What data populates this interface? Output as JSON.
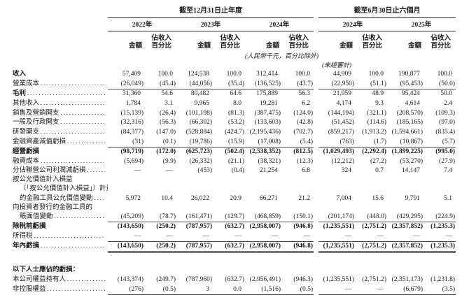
{
  "table": {
    "groups": [
      {
        "title": "截至12月31日止年度",
        "years": [
          "2022年",
          "2023年",
          "2024年"
        ]
      },
      {
        "title": "截至6月30日止六個月",
        "years": [
          "2024年",
          "2025年"
        ]
      }
    ],
    "subheader": {
      "amount": "金額",
      "pct": [
        "佔收入",
        "百分比"
      ]
    },
    "unit_note": "(人民幣千元，百分比除外)",
    "unaudited_note": "(未經審計)",
    "rows": [
      {
        "label": "收入",
        "label_bold": true,
        "values_bold": false,
        "dots": false,
        "indent": 0,
        "rule": null,
        "values": [
          "57,409",
          "100.0",
          "124,538",
          "100.0",
          "312,414",
          "100.0",
          "44,909",
          "100.0",
          "190,877",
          "100.0"
        ]
      },
      {
        "label": "營業成本",
        "label_bold": false,
        "values_bold": false,
        "dots": true,
        "indent": 0,
        "rule": "single",
        "values": [
          "(26,049)",
          "(45.4)",
          "(44,056)",
          "(35.4)",
          "(136,525)",
          "(43.7)",
          "(22,950)",
          "(51.1)",
          "(95,453)",
          "(50.0)"
        ]
      },
      {
        "label": "毛利",
        "label_bold": true,
        "values_bold": false,
        "dots": true,
        "indent": 0,
        "rule": null,
        "values": [
          "31,360",
          "54.6",
          "80,482",
          "64.6",
          "175,889",
          "56.3",
          "21,959",
          "48.9",
          "95,424",
          "50.0"
        ]
      },
      {
        "label": "其他收入",
        "label_bold": false,
        "values_bold": false,
        "dots": true,
        "indent": 0,
        "rule": null,
        "values": [
          "1,784",
          "3.1",
          "9,965",
          "8.0",
          "19,281",
          "6.2",
          "4,174",
          "9.3",
          "4,614",
          "2.4"
        ]
      },
      {
        "label": "銷售及營銷開支",
        "label_bold": false,
        "values_bold": false,
        "dots": true,
        "indent": 0,
        "rule": null,
        "values": [
          "(15,139)",
          "(26.4)",
          "(101,198)",
          "(81.3)",
          "(387,475)",
          "(124.0)",
          "(144,194)",
          "(321.1)",
          "(208,570)",
          "(109.3)"
        ]
      },
      {
        "label": "一般及行政開支",
        "label_bold": false,
        "values_bold": false,
        "dots": true,
        "indent": 0,
        "rule": null,
        "values": [
          "(32,316)",
          "(56.3)",
          "(66,302)",
          "(53.2)",
          "(133,603)",
          "(42.8)",
          "(51,452)",
          "(114.6)",
          "(185,165)",
          "(97.0)"
        ]
      },
      {
        "label": "研發開支",
        "label_bold": false,
        "values_bold": false,
        "dots": true,
        "indent": 0,
        "rule": null,
        "values": [
          "(84,377)",
          "(147.0)",
          "(528,884)",
          "(424.7)",
          "(2,195,436)",
          "(702.7)",
          "(859,217)",
          "(1,913.2)",
          "(1,594,661)",
          "(835.4)"
        ]
      },
      {
        "label": "金融資產減值虧損",
        "label_bold": false,
        "values_bold": false,
        "dots": true,
        "indent": 0,
        "rule": "single",
        "values": [
          "(31)",
          "(0.1)",
          "(19,786)",
          "(15.9)",
          "(17,008)",
          "(5.4)",
          "(763)",
          "(1.7)",
          "(10,867)",
          "(5.7)"
        ]
      },
      {
        "label": "經營虧損",
        "label_bold": true,
        "values_bold": true,
        "dots": false,
        "indent": 0,
        "rule": null,
        "values": [
          "(98,719)",
          "(172.0)",
          "(625,723)",
          "(502.4)",
          "(2,538,352)",
          "(812.5)",
          "(1,029,493)",
          "(2,292.4)",
          "(1,899,225)",
          "(995.0)"
        ]
      },
      {
        "label": "融資成本",
        "label_bold": false,
        "values_bold": false,
        "dots": true,
        "indent": 0,
        "rule": null,
        "values": [
          "(5,694)",
          "(9.9)",
          "(26,332)",
          "(21.1)",
          "(38,321)",
          "(12.3)",
          "(12,212)",
          "(27.2)",
          "(53,270)",
          "(27.9)"
        ]
      },
      {
        "label": "分佔聯營公司利潤減虧損",
        "label_bold": false,
        "values_bold": false,
        "dots": true,
        "indent": 0,
        "rule": null,
        "values": [
          "—",
          "—",
          "(453)",
          "(0.4)",
          "21,254",
          "6.8",
          "324",
          "0.7",
          "14,147",
          "7.4"
        ]
      },
      {
        "label": "按公允價值計入損益",
        "label_bold": false,
        "values_bold": false,
        "dots": false,
        "indent": 0,
        "rule": null,
        "values": null
      },
      {
        "label": "（「按公允價值計入損益」）計量",
        "label_bold": false,
        "values_bold": false,
        "dots": false,
        "indent": 1,
        "rule": null,
        "values": null
      },
      {
        "label": "的金融工具公允價值變動",
        "label_bold": false,
        "values_bold": false,
        "dots": true,
        "indent": 1,
        "rule": null,
        "values": [
          "5,972",
          "10.4",
          "26,022",
          "20.9",
          "66,271",
          "21.2",
          "7,004",
          "15.6",
          "9,791",
          "5.1"
        ]
      },
      {
        "label": "向投資者發行的金融工具的",
        "label_bold": false,
        "values_bold": false,
        "dots": false,
        "indent": 0,
        "rule": null,
        "values": null
      },
      {
        "label": "賬面值變動",
        "label_bold": false,
        "values_bold": false,
        "dots": true,
        "indent": 1,
        "rule": "single",
        "values": [
          "(45,209)",
          "(78.7)",
          "(161,471)",
          "(129.7)",
          "(468,859)",
          "(150.1)",
          "(201,174)",
          "(448.0)",
          "(429,295)",
          "(224.9)"
        ]
      },
      {
        "label": "除稅前虧損",
        "label_bold": true,
        "values_bold": true,
        "dots": false,
        "indent": 0,
        "rule": null,
        "values": [
          "(143,650)",
          "(250.2)",
          "(787,957)",
          "(632.7)",
          "(2,958,007)",
          "(946.8)",
          "(1,235,551)",
          "(2,751.2)",
          "(2,357,852)",
          "(1,235.3)"
        ]
      },
      {
        "label": "所得稅",
        "label_bold": false,
        "values_bold": false,
        "dots": true,
        "indent": 0,
        "rule": "single",
        "values": [
          "—",
          "—",
          "—",
          "—",
          "—",
          "—",
          "—",
          "—",
          "—",
          "—"
        ]
      },
      {
        "label": "年內虧損",
        "label_bold": true,
        "values_bold": true,
        "dots": true,
        "indent": 0,
        "rule": "double",
        "values": [
          "(143,650)",
          "(250.2)",
          "(787,957)",
          "(632.7)",
          "(2,958,007)",
          "(946.8)",
          "(1,235,551)",
          "(2,751.2)",
          "(2,357,852)",
          "(1,235.3)"
        ]
      },
      {
        "spacer": true
      },
      {
        "label": "以下人士應佔的虧損：",
        "label_bold": true,
        "values_bold": false,
        "dots": false,
        "indent": 0,
        "rule": null,
        "values": null
      },
      {
        "label": "本公司權益持有人",
        "label_bold": false,
        "values_bold": false,
        "dots": true,
        "indent": 0,
        "rule": null,
        "values": [
          "(143,374)",
          "(249.7)",
          "(787,960)",
          "(632.7)",
          "(2,956,491)",
          "(946.3)",
          "(1,235,551)",
          "(2,751.2)",
          "(2,351,173)",
          "(1,231.8)"
        ]
      },
      {
        "label": "非控股權益",
        "label_bold": false,
        "values_bold": false,
        "dots": true,
        "indent": 0,
        "rule": "single",
        "values": [
          "(276)",
          "(0.5)",
          "3",
          "0.0",
          "(1,516)",
          "(0.5)",
          "—",
          "—",
          "(6,679)",
          "(3.5)"
        ]
      }
    ]
  }
}
